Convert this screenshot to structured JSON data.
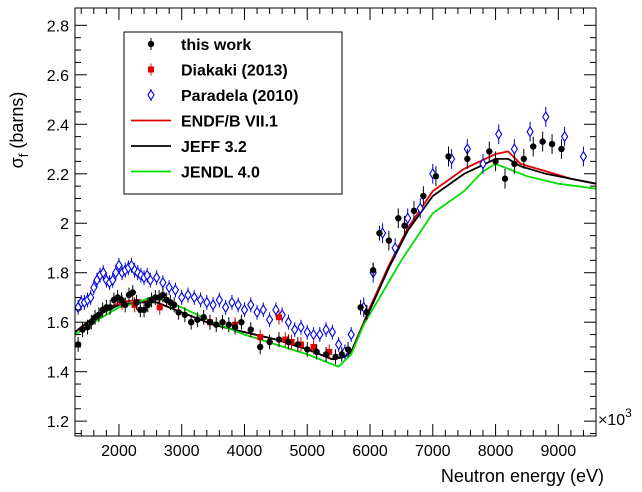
{
  "chart_data": {
    "type": "scatter",
    "xlabel": "Neutron energy (eV)",
    "ylabel_main": "σ",
    "ylabel_sub": "f",
    "ylabel_rest": " (barns)",
    "x_multiplier_base": "×10",
    "x_multiplier_exp": "3",
    "xlim": [
      1300,
      9600
    ],
    "ylim": [
      1.14,
      2.87
    ],
    "x_ticks": [
      2000,
      3000,
      4000,
      5000,
      6000,
      7000,
      8000,
      9000
    ],
    "x_tick_labels": [
      "2000",
      "3000",
      "4000",
      "5000",
      "6000",
      "7000",
      "8000",
      "9000"
    ],
    "y_ticks": [
      1.2,
      1.4,
      1.6,
      1.8,
      2.0,
      2.2,
      2.4,
      2.6,
      2.8
    ],
    "y_tick_labels": [
      "1.2",
      "1.4",
      "1.6",
      "1.8",
      "2",
      "2.2",
      "2.4",
      "2.6",
      "2.8"
    ],
    "legend_position": "top-left",
    "grid": false,
    "series": [
      {
        "name": "this work",
        "kind": "points",
        "marker": "circle",
        "color": "#000000",
        "x": [
          1350,
          1420,
          1500,
          1560,
          1620,
          1680,
          1740,
          1800,
          1860,
          1920,
          1980,
          2040,
          2100,
          2160,
          2220,
          2280,
          2340,
          2400,
          2460,
          2520,
          2580,
          2640,
          2700,
          2760,
          2820,
          2880,
          2950,
          3050,
          3150,
          3250,
          3350,
          3450,
          3550,
          3650,
          3750,
          3850,
          3950,
          4100,
          4250,
          4400,
          4550,
          4700,
          4850,
          5000,
          5150,
          5300,
          5450,
          5550,
          5650,
          5850,
          5950,
          6050,
          6150,
          6300,
          6450,
          6550,
          6700,
          6850,
          7050,
          7250,
          7550,
          7900,
          8000,
          8150,
          8300,
          8450,
          8600,
          8750,
          8900,
          9050
        ],
        "y": [
          1.51,
          1.57,
          1.58,
          1.6,
          1.62,
          1.63,
          1.65,
          1.66,
          1.66,
          1.69,
          1.7,
          1.69,
          1.67,
          1.71,
          1.72,
          1.68,
          1.65,
          1.65,
          1.67,
          1.69,
          1.7,
          1.7,
          1.71,
          1.69,
          1.68,
          1.67,
          1.64,
          1.63,
          1.6,
          1.61,
          1.62,
          1.6,
          1.59,
          1.6,
          1.59,
          1.58,
          1.6,
          1.57,
          1.5,
          1.52,
          1.53,
          1.52,
          1.51,
          1.49,
          1.48,
          1.47,
          1.46,
          1.47,
          1.49,
          1.66,
          1.64,
          1.81,
          1.96,
          1.93,
          2.02,
          1.99,
          2.05,
          2.11,
          2.19,
          2.27,
          2.26,
          2.29,
          2.25,
          2.18,
          2.24,
          2.26,
          2.31,
          2.33,
          2.32,
          2.3
        ],
        "err": [
          0.03,
          0.03,
          0.03,
          0.03,
          0.03,
          0.03,
          0.03,
          0.03,
          0.03,
          0.03,
          0.03,
          0.03,
          0.03,
          0.03,
          0.03,
          0.03,
          0.03,
          0.03,
          0.03,
          0.03,
          0.03,
          0.03,
          0.03,
          0.03,
          0.03,
          0.03,
          0.03,
          0.03,
          0.03,
          0.03,
          0.03,
          0.03,
          0.03,
          0.03,
          0.03,
          0.03,
          0.03,
          0.03,
          0.03,
          0.03,
          0.03,
          0.03,
          0.03,
          0.03,
          0.03,
          0.03,
          0.03,
          0.03,
          0.03,
          0.03,
          0.03,
          0.03,
          0.03,
          0.04,
          0.04,
          0.04,
          0.04,
          0.04,
          0.04,
          0.04,
          0.04,
          0.04,
          0.04,
          0.04,
          0.04,
          0.04,
          0.04,
          0.04,
          0.04,
          0.04
        ]
      },
      {
        "name": "Diakaki (2013)",
        "kind": "points",
        "marker": "square",
        "color": "#e00000",
        "x": [
          2050,
          2250,
          2650,
          3450,
          3850,
          4250,
          4550,
          4650,
          4750,
          4900,
          5100,
          5350
        ],
        "y": [
          1.68,
          1.67,
          1.66,
          1.6,
          1.59,
          1.54,
          1.62,
          1.53,
          1.52,
          1.51,
          1.5,
          1.48
        ],
        "err": [
          0.03,
          0.03,
          0.03,
          0.03,
          0.03,
          0.03,
          0.03,
          0.03,
          0.03,
          0.03,
          0.03,
          0.03
        ]
      },
      {
        "name": "Paradela (2010)",
        "kind": "points",
        "marker": "diamond-open",
        "color": "#0000e0",
        "x": [
          1350,
          1400,
          1450,
          1500,
          1550,
          1600,
          1650,
          1700,
          1750,
          1800,
          1850,
          1900,
          1950,
          2000,
          2050,
          2100,
          2150,
          2200,
          2250,
          2300,
          2350,
          2400,
          2450,
          2500,
          2600,
          2700,
          2800,
          2900,
          3000,
          3100,
          3200,
          3300,
          3400,
          3500,
          3600,
          3700,
          3800,
          3900,
          4000,
          4100,
          4200,
          4300,
          4400,
          4500,
          4600,
          4700,
          4800,
          4900,
          5000,
          5100,
          5200,
          5300,
          5400,
          5500,
          5600,
          5700,
          5900,
          6050,
          6200,
          6400,
          6600,
          6800,
          7000,
          7300,
          7550,
          7800,
          8050,
          8300,
          8550,
          8800,
          9100,
          9400
        ],
        "y": [
          1.66,
          1.68,
          1.68,
          1.69,
          1.7,
          1.74,
          1.77,
          1.79,
          1.8,
          1.77,
          1.76,
          1.77,
          1.8,
          1.83,
          1.8,
          1.81,
          1.82,
          1.83,
          1.81,
          1.8,
          1.79,
          1.78,
          1.79,
          1.77,
          1.78,
          1.76,
          1.74,
          1.73,
          1.7,
          1.71,
          1.7,
          1.69,
          1.68,
          1.67,
          1.69,
          1.66,
          1.68,
          1.67,
          1.65,
          1.67,
          1.64,
          1.65,
          1.61,
          1.65,
          1.63,
          1.6,
          1.57,
          1.58,
          1.56,
          1.55,
          1.55,
          1.57,
          1.56,
          1.51,
          1.48,
          1.55,
          1.66,
          1.8,
          1.96,
          1.9,
          2.02,
          2.06,
          2.2,
          2.26,
          2.3,
          2.24,
          2.36,
          2.3,
          2.37,
          2.43,
          2.35,
          2.27
        ],
        "err": [
          0.03,
          0.03,
          0.03,
          0.03,
          0.03,
          0.03,
          0.03,
          0.03,
          0.03,
          0.03,
          0.03,
          0.03,
          0.03,
          0.03,
          0.03,
          0.03,
          0.03,
          0.03,
          0.03,
          0.03,
          0.03,
          0.03,
          0.03,
          0.03,
          0.03,
          0.03,
          0.03,
          0.03,
          0.03,
          0.03,
          0.03,
          0.03,
          0.03,
          0.03,
          0.03,
          0.03,
          0.03,
          0.03,
          0.03,
          0.03,
          0.03,
          0.03,
          0.03,
          0.03,
          0.03,
          0.03,
          0.03,
          0.03,
          0.03,
          0.03,
          0.03,
          0.03,
          0.03,
          0.03,
          0.03,
          0.03,
          0.04,
          0.04,
          0.04,
          0.04,
          0.04,
          0.04,
          0.04,
          0.04,
          0.04,
          0.04,
          0.04,
          0.04,
          0.04,
          0.04,
          0.04,
          0.04
        ]
      },
      {
        "name": "ENDF/B VII.1",
        "kind": "line",
        "color": "#e00000",
        "x": [
          1300,
          1600,
          2000,
          2300,
          2600,
          3000,
          3500,
          4000,
          4500,
          5000,
          5400,
          5600,
          5700,
          6000,
          6300,
          6600,
          7000,
          7500,
          8000,
          8200,
          8400,
          8800,
          9200,
          9600
        ],
        "y": [
          1.56,
          1.62,
          1.68,
          1.69,
          1.68,
          1.64,
          1.59,
          1.56,
          1.53,
          1.49,
          1.45,
          1.46,
          1.48,
          1.66,
          1.83,
          1.98,
          2.13,
          2.22,
          2.28,
          2.29,
          2.24,
          2.21,
          2.18,
          2.16
        ]
      },
      {
        "name": "JEFF 3.2",
        "kind": "line",
        "color": "#000000",
        "x": [
          1300,
          1600,
          2000,
          2300,
          2600,
          3000,
          3500,
          4000,
          4500,
          5000,
          5400,
          5600,
          5700,
          6000,
          6300,
          6600,
          7000,
          7500,
          8000,
          8200,
          8400,
          8800,
          9200,
          9600
        ],
        "y": [
          1.56,
          1.62,
          1.67,
          1.68,
          1.68,
          1.64,
          1.59,
          1.56,
          1.53,
          1.49,
          1.45,
          1.46,
          1.48,
          1.65,
          1.82,
          1.97,
          2.11,
          2.2,
          2.26,
          2.26,
          2.23,
          2.2,
          2.18,
          2.16
        ]
      },
      {
        "name": "JENDL 4.0",
        "kind": "line",
        "color": "#00dd00",
        "x": [
          1300,
          1600,
          2000,
          2300,
          2500,
          2700,
          3000,
          3500,
          4000,
          4500,
          5000,
          5300,
          5500,
          5700,
          5900,
          6200,
          6500,
          7000,
          7500,
          7800,
          8000,
          8200,
          8500,
          9000,
          9600
        ],
        "y": [
          1.55,
          1.6,
          1.66,
          1.68,
          1.7,
          1.69,
          1.66,
          1.6,
          1.55,
          1.51,
          1.47,
          1.44,
          1.42,
          1.47,
          1.59,
          1.72,
          1.85,
          2.04,
          2.13,
          2.21,
          2.24,
          2.22,
          2.19,
          2.16,
          2.14
        ]
      }
    ]
  }
}
